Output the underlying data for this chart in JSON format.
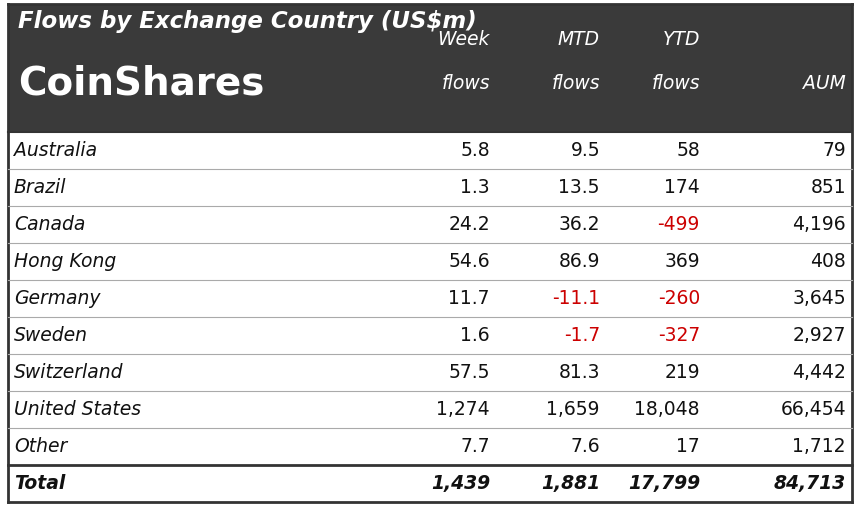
{
  "title": "Flows by Exchange Country (US$m)",
  "logo_text": "CoinShares",
  "header_bg": "#3a3a3a",
  "header_text_color": "#ffffff",
  "rows": [
    {
      "country": "Australia",
      "week": "5.8",
      "mtd": "9.5",
      "ytd": "58",
      "aum": "79",
      "neg_week": false,
      "neg_mtd": false,
      "neg_ytd": false
    },
    {
      "country": "Brazil",
      "week": "1.3",
      "mtd": "13.5",
      "ytd": "174",
      "aum": "851",
      "neg_week": false,
      "neg_mtd": false,
      "neg_ytd": false
    },
    {
      "country": "Canada",
      "week": "24.2",
      "mtd": "36.2",
      "ytd": "-499",
      "aum": "4,196",
      "neg_week": false,
      "neg_mtd": false,
      "neg_ytd": true
    },
    {
      "country": "Hong Kong",
      "week": "54.6",
      "mtd": "86.9",
      "ytd": "369",
      "aum": "408",
      "neg_week": false,
      "neg_mtd": false,
      "neg_ytd": false
    },
    {
      "country": "Germany",
      "week": "11.7",
      "mtd": "-11.1",
      "ytd": "-260",
      "aum": "3,645",
      "neg_week": false,
      "neg_mtd": true,
      "neg_ytd": true
    },
    {
      "country": "Sweden",
      "week": "1.6",
      "mtd": "-1.7",
      "ytd": "-327",
      "aum": "2,927",
      "neg_week": false,
      "neg_mtd": true,
      "neg_ytd": true
    },
    {
      "country": "Switzerland",
      "week": "57.5",
      "mtd": "81.3",
      "ytd": "219",
      "aum": "4,442",
      "neg_week": false,
      "neg_mtd": false,
      "neg_ytd": false
    },
    {
      "country": "United States",
      "week": "1,274",
      "mtd": "1,659",
      "ytd": "18,048",
      "aum": "66,454",
      "neg_week": false,
      "neg_mtd": false,
      "neg_ytd": false
    },
    {
      "country": "Other",
      "week": "7.7",
      "mtd": "7.6",
      "ytd": "17",
      "aum": "1,712",
      "neg_week": false,
      "neg_mtd": false,
      "neg_ytd": false
    }
  ],
  "total": {
    "country": "Total",
    "week": "1,439",
    "mtd": "1,881",
    "ytd": "17,799",
    "aum": "84,713"
  },
  "neg_color": "#cc0000",
  "pos_color": "#111111",
  "border_color": "#aaaaaa",
  "thick_border": "#333333",
  "fig_w": 8.6,
  "fig_h": 5.16,
  "dpi": 100
}
